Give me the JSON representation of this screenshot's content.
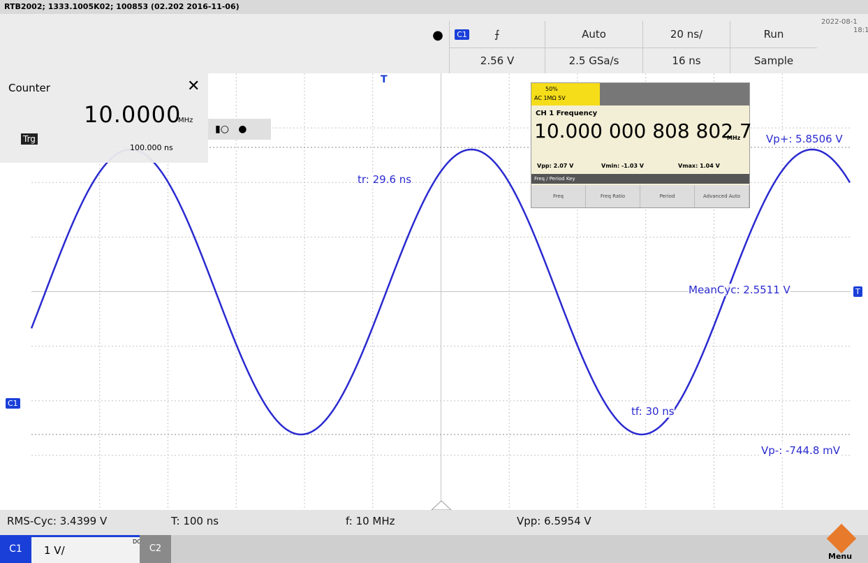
{
  "header": {
    "title": "RTB2002; 1333.1005K02; 100853 (02.202 2016-11-06)"
  },
  "toolbar": {
    "channel": "C1",
    "trigger_mode": "Auto",
    "time_scale": "20 ns/",
    "run_state": "Run",
    "trigger_level": "2.56 V",
    "sample_rate": "2.5 GSa/s",
    "trigger_offset": "16 ns",
    "acquisition": "Sample",
    "date": "2022-08-1",
    "time": "18:1"
  },
  "counter": {
    "title": "Counter",
    "value": "10.0000",
    "unit": "MHz",
    "source": "Trg",
    "period": "100.000 ns"
  },
  "inset": {
    "badge": "50%",
    "coupling": "AC 1MΩ 5V",
    "label": "CH 1 Frequency",
    "value": "10.000 000 808 802 7",
    "unit": "MHz",
    "vpp": "Vpp: 2.07 V",
    "vmin": "Vmin: -1.03 V",
    "vmax": "Vmax: 1.04 V",
    "menu": "Freq / Period Key",
    "buttons": [
      "Freq",
      "Freq Ratio",
      "Period",
      "Advanced Auto"
    ]
  },
  "markers": {
    "trigger_time": "T",
    "channel": "C1",
    "trigger_level": "T"
  },
  "annotations": {
    "vp_plus": "Vp+: 5.8506 V",
    "rise_time": "tr: 29.6 ns",
    "mean_cycle": "MeanCyc: 2.5511 V",
    "fall_time": "tf: 30 ns",
    "vp_minus": "Vp-: -744.8 mV"
  },
  "measurements": [
    "RMS-Cyc: 3.4399 V",
    "T: 100 ns",
    "f: 10 MHz",
    "Vpp: 6.5954 V"
  ],
  "channel_bar": {
    "channel": "C1",
    "scale": "1 V/",
    "coupling": "DC",
    "channel2": "C2",
    "menu": "Menu"
  }
}
